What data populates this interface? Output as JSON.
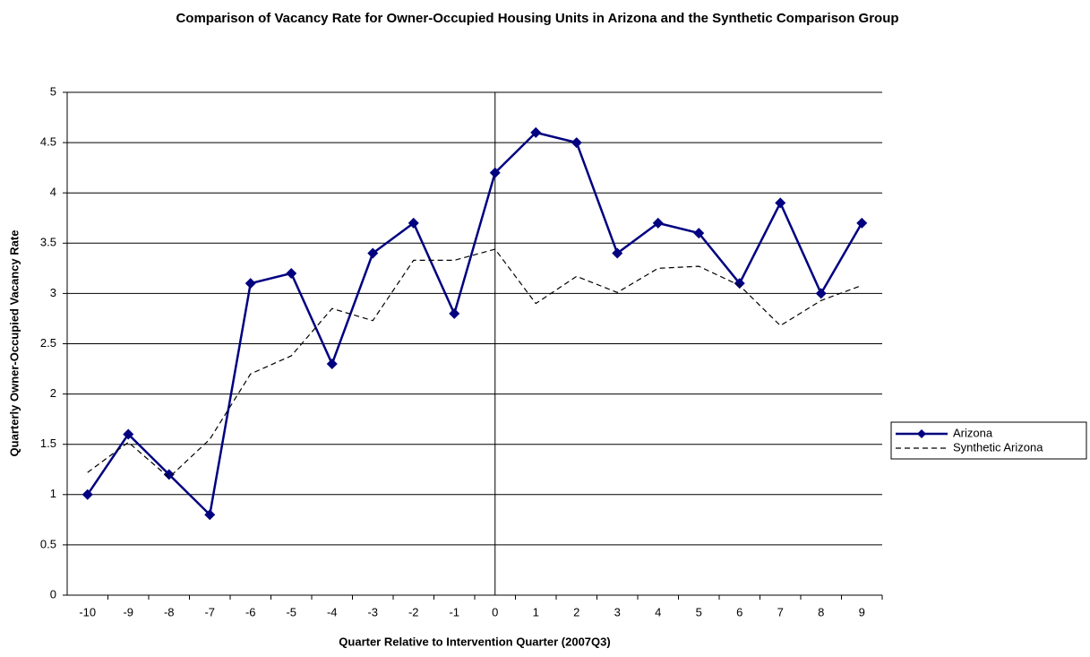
{
  "chart_data": {
    "type": "line",
    "title": "Comparison of Vacancy Rate for Owner-Occupied Housing Units in Arizona and the Synthetic Comparison Group",
    "x_label": "Quarter Relative to Intervention Quarter (2007Q3)",
    "y_label": "Quarterly Owner-Occupied Vacancy Rate",
    "x": [
      -10,
      -9,
      -8,
      -7,
      -6,
      -5,
      -4,
      -3,
      -2,
      -1,
      0,
      1,
      2,
      3,
      4,
      5,
      6,
      7,
      8,
      9
    ],
    "xlim": [
      -10.5,
      9.5
    ],
    "xticks": [
      -10,
      -9,
      -8,
      -7,
      -6,
      -5,
      -4,
      -3,
      -2,
      -1,
      0,
      1,
      2,
      3,
      4,
      5,
      6,
      7,
      8,
      9
    ],
    "ylim": [
      0,
      5
    ],
    "yticks": [
      0,
      0.5,
      1,
      1.5,
      2,
      2.5,
      3,
      3.5,
      4,
      4.5,
      5
    ],
    "grid": true,
    "legend": "right",
    "series": [
      {
        "name": "Arizona",
        "color": "#000080",
        "style": "solid",
        "marker": "diamond",
        "values": [
          1,
          1.6,
          1.2,
          0.8,
          3.1,
          3.2,
          2.3,
          3.4,
          3.7,
          2.8,
          4.2,
          4.6,
          4.5,
          3.4,
          3.7,
          3.6,
          3.1,
          3.9,
          3.0,
          3.7
        ]
      },
      {
        "name": "Synthetic Arizona",
        "color": "#000000",
        "style": "dashed",
        "values": [
          1.22,
          1.52,
          1.17,
          1.55,
          2.2,
          2.38,
          2.85,
          2.73,
          3.33,
          3.33,
          3.44,
          2.9,
          3.17,
          3.01,
          3.25,
          3.27,
          3.08,
          2.68,
          2.93,
          3.08
        ]
      }
    ]
  }
}
